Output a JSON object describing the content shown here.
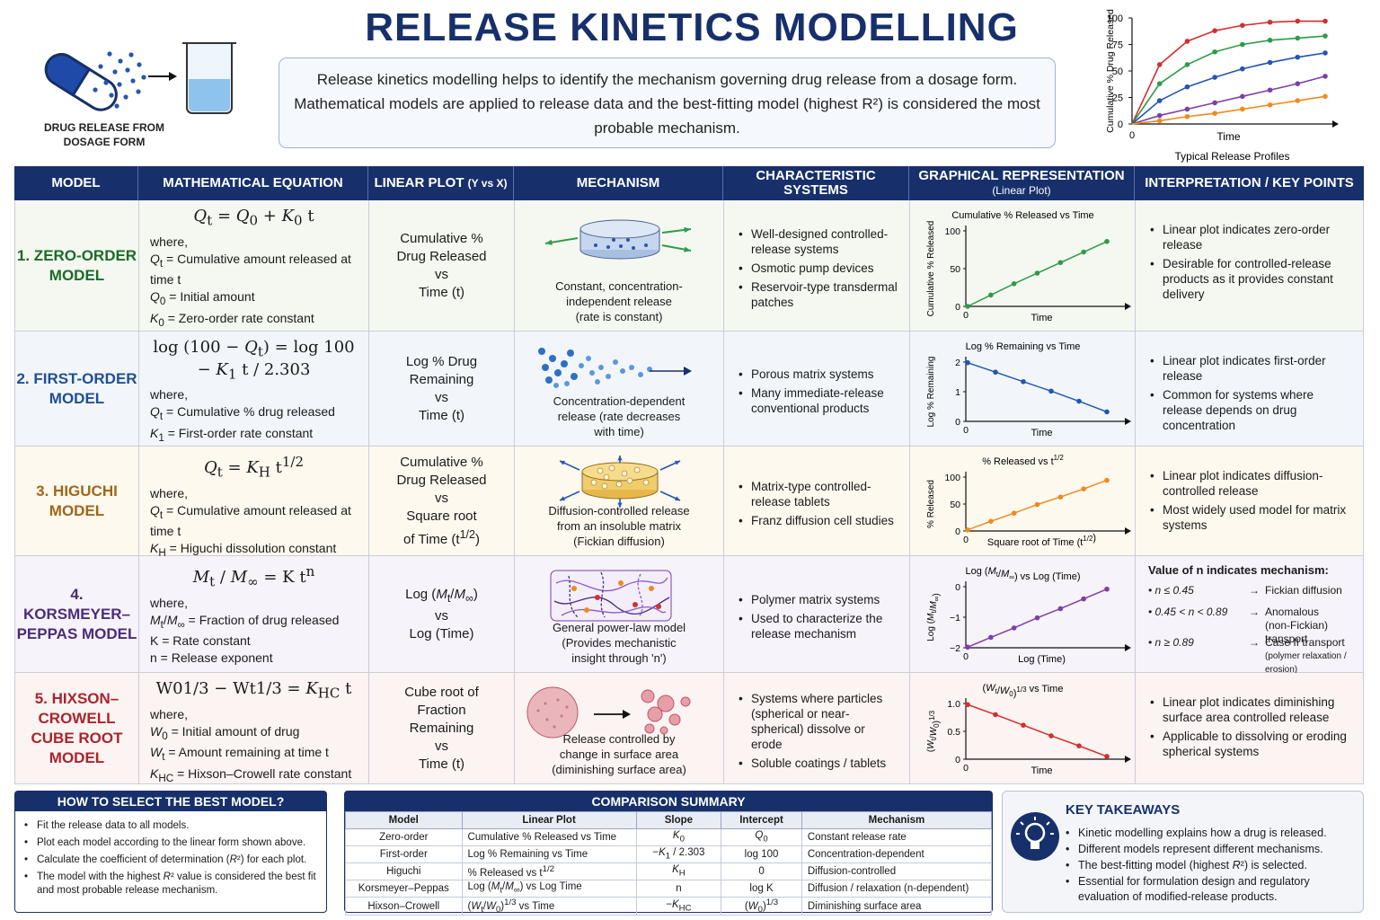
{
  "title": "RELEASE KINETICS MODELLING",
  "intro": "Release kinetics modelling helps to identify the mechanism governing drug release from a dosage form. Mathematical models are applied to release data and the best-fitting model (highest R²) is considered the most probable mechanism.",
  "header_icon_caption": "DRUG RELEASE FROM DOSAGE FORM",
  "header_chart": {
    "type": "line",
    "ylabel": "Cumulative % Drug Released",
    "xlabel": "Time",
    "caption": "Typical Release Profiles",
    "ytick_labels": [
      "100",
      "75",
      "50",
      "25",
      "0"
    ],
    "xtick_label": "0",
    "x": [
      0,
      1,
      2,
      3,
      4,
      5,
      6,
      7
    ],
    "series": [
      {
        "color": "#d32f2f",
        "values": [
          0,
          56,
          78,
          88,
          93,
          96,
          97,
          97
        ]
      },
      {
        "color": "#2e9b48",
        "values": [
          0,
          38,
          56,
          68,
          75,
          79,
          81,
          83
        ]
      },
      {
        "color": "#2456b0",
        "values": [
          0,
          22,
          35,
          44,
          52,
          58,
          63,
          67
        ]
      },
      {
        "color": "#7b3fa8",
        "values": [
          0,
          8,
          14,
          20,
          26,
          32,
          38,
          45
        ]
      },
      {
        "color": "#f08a1c",
        "values": [
          0,
          3,
          7,
          10,
          14,
          18,
          22,
          26
        ]
      }
    ]
  },
  "table_headers": [
    "MODEL",
    "MATHEMATICAL EQUATION",
    "LINEAR PLOT (Y vs X)",
    "MECHANISM",
    "CHARACTERISTIC SYSTEMS",
    "GRAPHICAL REPRESENTATION",
    "INTERPRETATION / KEY POINTS"
  ],
  "graph_header_sub": "(Linear Plot)",
  "linear_plot_sub": "(Y vs X)",
  "rows": [
    {
      "name": "1. ZERO-ORDER MODEL",
      "color": "#1b6b27",
      "bg": "#f4f8f1",
      "equation": "Qt = Q0 + K0 t",
      "where": "where,",
      "defs": [
        "Qt = Cumulative amount released at time t",
        "Q0 = Initial amount",
        "K0 = Zero-order rate constant"
      ],
      "linear_plot": [
        "Cumulative %",
        "Drug Released",
        "vs",
        "Time (t)"
      ],
      "mechanism": [
        "Constant, concentration-",
        "independent release",
        "(rate is constant)"
      ],
      "systems": [
        "Well-designed controlled-release systems",
        "Osmotic pump devices",
        "Reservoir-type transdermal patches"
      ],
      "interp": [
        "Linear plot indicates zero-order release",
        "Desirable for controlled-release products as it provides constant delivery"
      ],
      "chart_data": {
        "type": "line",
        "title": "Cumulative % Released vs Time",
        "ylabel": "Cumulative % Released",
        "xlabel": "Time",
        "ytick_labels": [
          "100",
          "50",
          "0"
        ],
        "xtick_label": "0",
        "ylim": [
          0,
          100
        ],
        "x": [
          0,
          1,
          2,
          3,
          4,
          5,
          6
        ],
        "values": [
          0,
          15,
          30,
          44,
          58,
          72,
          86
        ],
        "color": "#2e9b48"
      }
    },
    {
      "name": "2. FIRST-ORDER MODEL",
      "color": "#1f4f94",
      "bg": "#f2f6fb",
      "equation": "log (100 − Qt) = log 100 − K1 t / 2.303",
      "where": "where,",
      "defs": [
        "Qt = Cumulative % drug released",
        "K1 = First-order rate constant"
      ],
      "linear_plot": [
        "Log % Drug",
        "Remaining",
        "vs",
        "Time (t)"
      ],
      "mechanism": [
        "Concentration-dependent",
        "release (rate decreases",
        "with time)"
      ],
      "systems": [
        "Porous matrix systems",
        "Many immediate-release conventional products"
      ],
      "interp": [
        "Linear plot indicates first-order release",
        "Common for systems where release depends on drug concentration"
      ],
      "chart_data": {
        "type": "line",
        "title": "Log % Remaining vs Time",
        "ylabel": "Log % Remaining",
        "xlabel": "Time",
        "ytick_labels": [
          "2",
          "1",
          "0"
        ],
        "xtick_label": "0",
        "ylim": [
          0,
          2
        ],
        "x": [
          0,
          1,
          2,
          3,
          4,
          5
        ],
        "values": [
          1.98,
          1.66,
          1.34,
          1.02,
          0.68,
          0.32
        ],
        "color": "#2456b0"
      }
    },
    {
      "name": "3. HIGUCHI MODEL",
      "color": "#a0661a",
      "bg": "#fdf9ef",
      "equation": "Qt = KH t1/2",
      "where": "where,",
      "defs": [
        "Qt = Cumulative amount released at time t",
        "KH = Higuchi dissolution constant"
      ],
      "linear_plot": [
        "Cumulative %",
        "Drug Released",
        "vs",
        "Square root",
        "of Time (t1/2)"
      ],
      "mechanism": [
        "Diffusion-controlled release",
        "from an insoluble matrix",
        "(Fickian diffusion)"
      ],
      "systems": [
        "Matrix-type controlled-release tablets",
        "Franz diffusion cell studies"
      ],
      "interp": [
        "Linear plot indicates diffusion-controlled release",
        "Most widely used model for matrix systems"
      ],
      "chart_data": {
        "type": "line",
        "title": "% Released vs t1/2",
        "ylabel": "% Released",
        "xlabel": "Square root of Time (t1/2)",
        "ytick_labels": [
          "100",
          "50",
          "0"
        ],
        "xtick_label": "0",
        "ylim": [
          0,
          100
        ],
        "x": [
          0,
          1,
          2,
          3,
          4,
          5,
          6
        ],
        "values": [
          2,
          18,
          33,
          49,
          63,
          78,
          94
        ],
        "color": "#f08a1c"
      }
    },
    {
      "name": "4. KORSMEYER–PEPPAS MODEL",
      "color": "#4a2c7a",
      "bg": "#f6f3fa",
      "equation": "Mt / M∞ = K tn",
      "where": "where,",
      "defs": [
        "Mt/M∞ = Fraction of drug released",
        "K = Rate constant",
        "n = Release exponent"
      ],
      "linear_plot": [
        "Log (Mt/M∞)",
        "vs",
        "Log (Time)"
      ],
      "mechanism": [
        "General power-law model",
        "(Provides mechanistic",
        "insight through 'n')"
      ],
      "systems": [
        "Polymer matrix systems",
        "Used to characterize the release mechanism"
      ],
      "interp_title": "Value of n indicates mechanism:",
      "n_values": [
        {
          "cond": "n ≤ 0.45",
          "arrow": "→",
          "mech": "Fickian diffusion",
          "note": ""
        },
        {
          "cond": "0.45 < n < 0.89",
          "arrow": "→",
          "mech": "Anomalous",
          "note": "(non-Fickian) transport"
        },
        {
          "cond": "n ≥ 0.89",
          "arrow": "→",
          "mech": "Case II transport",
          "note": "(polymer relaxation / erosion)"
        }
      ],
      "chart_data": {
        "type": "line",
        "title": "Log (Mt/M∞) vs Log (Time)",
        "ylabel": "Log (Mt/M∞)",
        "xlabel": "Log (Time)",
        "ytick_labels": [
          "0",
          "−1",
          "−2"
        ],
        "xtick_label": "0",
        "ylim": [
          -2,
          0
        ],
        "x": [
          0,
          1,
          2,
          3,
          4,
          5,
          6
        ],
        "values": [
          -1.98,
          -1.66,
          -1.35,
          -1.02,
          -0.72,
          -0.4,
          -0.08
        ],
        "color": "#7b3fa8"
      }
    },
    {
      "name": "5. HIXSON–CROWELL CUBE ROOT MODEL",
      "color": "#a8262c",
      "bg": "#fcf3f3",
      "equation": "W01/3 − Wt1/3 = KHC t",
      "where": "where,",
      "defs": [
        "W0 = Initial amount of drug",
        "Wt = Amount remaining at time t",
        "KHC = Hixson–Crowell rate constant"
      ],
      "linear_plot": [
        "Cube root of",
        "Fraction",
        "Remaining",
        "vs",
        "Time (t)"
      ],
      "mechanism": [
        "Release controlled by",
        "change in surface area",
        "(diminishing surface area)"
      ],
      "systems": [
        "Systems where particles (spherical or near-spherical) dissolve or erode",
        "Soluble coatings / tablets"
      ],
      "interp": [
        "Linear plot indicates diminishing surface area controlled release",
        "Applicable to dissolving or eroding spherical systems"
      ],
      "chart_data": {
        "type": "line",
        "title": "(Wt/W0)1/3 vs Time",
        "ylabel": "(Wt/W0)1/3",
        "xlabel": "Time",
        "ytick_labels": [
          "1.0",
          "0.5",
          "0"
        ],
        "xtick_label": "0",
        "ylim": [
          0,
          1
        ],
        "x": [
          0,
          1,
          2,
          3,
          4,
          5
        ],
        "values": [
          0.98,
          0.8,
          0.61,
          0.42,
          0.24,
          0.05
        ],
        "color": "#d32f2f"
      }
    }
  ],
  "how_to": {
    "title": "HOW TO SELECT THE BEST MODEL?",
    "items": [
      "Fit the release data to all models.",
      "Plot each model according to the linear form shown above.",
      "Calculate the coefficient of determination (R²) for each plot.",
      "The model with the highest R² value is considered the best fit and most probable release mechanism."
    ]
  },
  "comparison": {
    "title": "COMPARISON SUMMARY",
    "headers": [
      "Model",
      "Linear Plot",
      "Slope",
      "Intercept",
      "Mechanism"
    ],
    "rows": [
      [
        "Zero-order",
        "Cumulative % Released vs Time",
        "K0",
        "Q0",
        "Constant release rate"
      ],
      [
        "First-order",
        "Log % Remaining vs Time",
        "−K1 / 2.303",
        "log 100",
        "Concentration-dependent"
      ],
      [
        "Higuchi",
        "% Released vs t1/2",
        "KH",
        "0",
        "Diffusion-controlled"
      ],
      [
        "Korsmeyer–Peppas",
        "Log (Mt/M∞) vs Log Time",
        "n",
        "log K",
        "Diffusion / relaxation (n-dependent)"
      ],
      [
        "Hixson–Crowell",
        "(Wt/W0)1/3 vs Time",
        "−KHC",
        "(W0)1/3",
        "Diminishing surface area"
      ]
    ]
  },
  "takeaways": {
    "title": "KEY TAKEAWAYS",
    "icon": "lightbulb-icon",
    "items": [
      "Kinetic modelling explains how a drug is released.",
      "Different models represent different mechanisms.",
      "The best-fitting model (highest R²) is selected.",
      "Essential for formulation design and regulatory evaluation of modified-release products."
    ]
  }
}
